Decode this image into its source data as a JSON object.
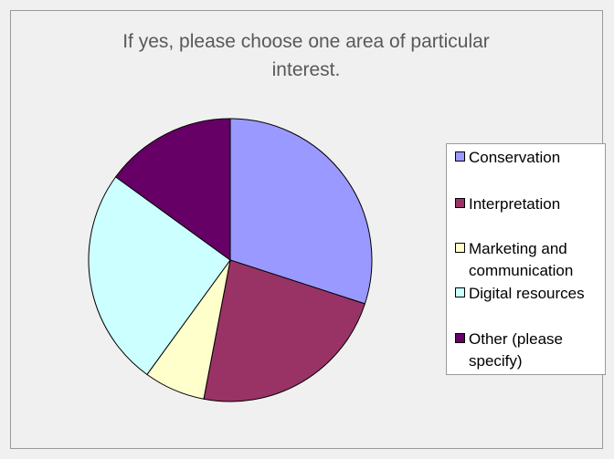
{
  "chart_data": {
    "type": "pie",
    "title": "If yes, please choose one area of particular interest.",
    "categories": [
      "Conservation",
      "Interpretation",
      "Marketing and communication",
      "Digital resources",
      "Other (please specify)"
    ],
    "values": [
      30,
      23,
      7,
      25,
      15
    ],
    "colors": [
      "#9999ff",
      "#993366",
      "#ffffcc",
      "#ccffff",
      "#660066"
    ],
    "legend_position": "right"
  }
}
